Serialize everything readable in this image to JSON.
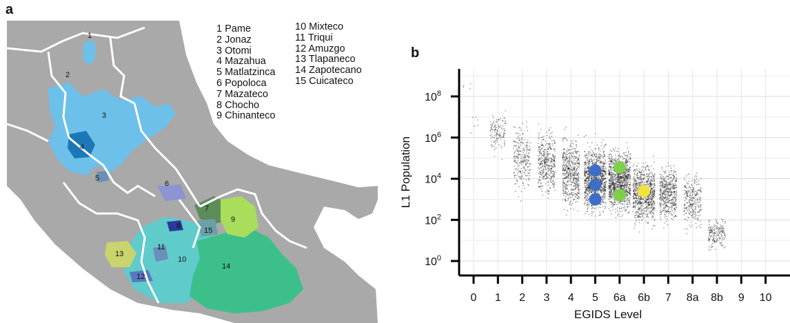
{
  "panel_a": {
    "letter": "a",
    "legend_left": [
      "1 Pame",
      "2 Jonaz",
      "3 Otomi",
      "4 Mazahua",
      "5 Matlatzinca",
      "6 Popoloca",
      "7 Mazateco",
      "8 Chocho",
      "9 Chinanteco"
    ],
    "legend_right": [
      "10 Mixteco",
      "11 Triqui",
      "12 Amuzgo",
      "13 Tlapaneco",
      "14 Zapotecano",
      "15 Cuicateco"
    ],
    "region_labels": [
      "1",
      "2",
      "3",
      "4",
      "5",
      "6",
      "7",
      "8",
      "9",
      "10",
      "11",
      "12",
      "13",
      "14",
      "15"
    ],
    "colors": {
      "land": "#a9a9a9",
      "border": "#ffffff",
      "otomi": "#6cc0ea",
      "mazahua": "#1c77b7",
      "mixteco": "#5fcbcb",
      "zapotecano": "#3dbf8c",
      "chinanteco": "#a8de5c",
      "mazateco": "#5c8c5a",
      "chocho": "#2b3a9a",
      "tlapaneco": "#c9d46c",
      "popoloca": "#8c94d2"
    }
  },
  "panel_b": {
    "letter": "b",
    "chart_data": {
      "type": "scatter",
      "xlabel": "EGIDS Level",
      "ylabel": "L1 Population",
      "categories": [
        "0",
        "1",
        "2",
        "3",
        "4",
        "5",
        "6a",
        "6b",
        "7",
        "8a",
        "8b",
        "9",
        "10"
      ],
      "y_scale": "log10",
      "ylim": [
        1,
        1000000000
      ],
      "y_ticks": [
        {
          "label": "10",
          "exp": "0",
          "value": 1
        },
        {
          "label": "10",
          "exp": "2",
          "value": 100
        },
        {
          "label": "10",
          "exp": "4",
          "value": 10000
        },
        {
          "label": "10",
          "exp": "6",
          "value": 1000000
        },
        {
          "label": "10",
          "exp": "8",
          "value": 100000000
        }
      ],
      "grid": true,
      "highlight_series": [
        {
          "color": "#3c6ec8",
          "points": [
            {
              "x": "5",
              "y": 25000
            },
            {
              "x": "5",
              "y": 5000
            },
            {
              "x": "5",
              "y": 1000
            }
          ]
        },
        {
          "color": "#7ed04a",
          "points": [
            {
              "x": "6a",
              "y": 35000
            },
            {
              "x": "6a",
              "y": 1600
            }
          ]
        },
        {
          "color": "#f2e23c",
          "points": [
            {
              "x": "6b",
              "y": 2500
            }
          ]
        }
      ]
    }
  }
}
